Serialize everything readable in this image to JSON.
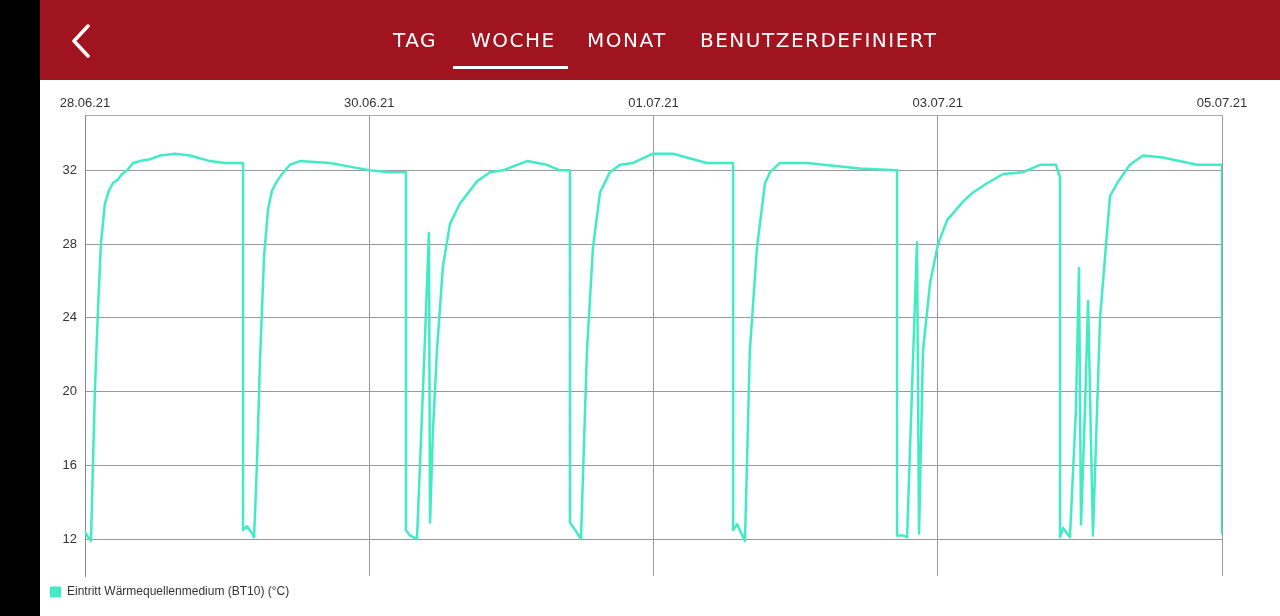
{
  "chart_data": {
    "type": "line",
    "annotations": [
      "TAG",
      "WOCHE",
      "MONAT",
      "BENUTZERDEFINIERT"
    ],
    "xlim": [
      "--06-28T06:00",
      "--07-05T06:00"
    ],
    "xticks": [
      {
        "value": "--06-28T06:00",
        "label": "28.06.21"
      },
      {
        "value": "--06-30T00:00",
        "label": "30.06.21"
      },
      {
        "value": "--07-01T18:00",
        "label": "01.07.21"
      },
      {
        "value": "--07-03T12:00",
        "label": "03.07.21"
      },
      {
        "value": "--07-05T06:00",
        "label": "05.07.21"
      }
    ],
    "ylim": [
      10,
      35
    ],
    "yticks": [
      12,
      16,
      20,
      24,
      28,
      32
    ],
    "grid": true,
    "legend": "bottom left",
    "marker": "none",
    "line_style": "solid",
    "series": [
      {
        "name": "Eintritt Wärmequellenmedium (BT10) (°C)",
        "color": "#42ebc6",
        "x": [
          "--06-28T06:00",
          "--06-28T06:28",
          "--06-28T06:53",
          "--06-28T07:11",
          "--06-28T07:28",
          "--06-28T07:56",
          "--06-28T08:21",
          "--06-28T08:56",
          "--06-28T09:32",
          "--06-28T10:07",
          "--06-28T10:52",
          "--06-28T11:28",
          "--06-28T12:13",
          "--06-28T13:06",
          "--06-28T14:06",
          "--06-28T15:37",
          "--06-28T17:05",
          "--06-28T19:19",
          "--06-28T21:30",
          "--06-29T00:29",
          "--06-29T02:40",
          "--06-29T05:21",
          "--06-29T05:21",
          "--06-29T05:56",
          "--06-29T06:32",
          "--06-29T06:59",
          "--06-29T07:25",
          "--06-29T07:52",
          "--06-29T08:28",
          "--06-29T09:03",
          "--06-29T09:38",
          "--06-29T10:21",
          "--06-29T11:07",
          "--06-29T12:17",
          "--06-29T13:45",
          "--06-29T18:12",
          "--06-29T21:09",
          "--06-30T00:00",
          "--06-30T03:04",
          "--06-30T05:25",
          "--06-30T05:25",
          "--06-30T06:00",
          "--06-30T07:03",
          "--06-30T07:31",
          "--06-30T08:14",
          "--06-30T08:49",
          "--06-30T08:59",
          "--06-30T09:24",
          "--06-30T10:00",
          "--06-30T10:53",
          "--06-30T11:56",
          "--06-30T13:24",
          "--06-30T15:55",
          "--06-30T17:51",
          "--06-30T19:47",
          "--06-30T23:19",
          "--07-01T02:15",
          "--07-01T04:11",
          "--07-01T05:39",
          "--07-01T05:39",
          "--07-01T06:25",
          "--07-01T07:17",
          "--07-01T08:10",
          "--07-01T09:03",
          "--07-01T10:06",
          "--07-01T11:34",
          "--07-01T13:03",
          "--07-01T14:59",
          "--07-01T17:55",
          "--07-01T20:54",
          "--07-02T01:54",
          "--07-02T05:46",
          "--07-02T05:46",
          "--07-02T06:21",
          "--07-02T07:31",
          "--07-02T08:14",
          "--07-02T09:17",
          "--07-02T10:28",
          "--07-02T11:13",
          "--07-02T12:41",
          "--07-02T16:41",
          "--07-03T00:29",
          "--07-03T05:59",
          "--07-03T05:59",
          "--07-03T06:53",
          "--07-03T07:28",
          "--07-03T08:21",
          "--07-03T08:56",
          "--07-03T09:14",
          "--07-03T09:49",
          "--07-03T10:52",
          "--07-03T12:03",
          "--07-03T13:23",
          "--07-03T15:44",
          "--07-03T17:13",
          "--07-03T19:16",
          "--07-03T21:40",
          "--07-04T00:36",
          "--07-04T03:07",
          "--07-04T05:28",
          "--07-04T06:04",
          "--07-04T06:04",
          "--07-04T06:31",
          "--07-04T07:32",
          "--07-04T08:25",
          "--07-04T08:52",
          "--07-04T09:10",
          "--07-04T09:45",
          "--07-04T10:13",
          "--07-04T10:56",
          "--07-04T11:59",
          "--07-04T13:27",
          "--07-04T14:30",
          "--07-04T16:23",
          "--07-04T18:19",
          "--07-04T21:18",
          "--07-05T02:18",
          "--07-05T06:00",
          "--07-05T06:00"
        ],
        "values": [
          12.4,
          12.1,
          11.9,
          16.2,
          20.1,
          24.6,
          28.0,
          30.2,
          30.9,
          31.3,
          31.5,
          31.8,
          32.0,
          32.4,
          32.5,
          32.6,
          32.8,
          32.9,
          32.8,
          32.5,
          32.4,
          32.4,
          12.5,
          12.7,
          12.4,
          12.1,
          16.2,
          21.8,
          27.4,
          29.9,
          30.9,
          31.4,
          31.8,
          32.3,
          32.5,
          32.4,
          32.2,
          32.0,
          31.9,
          31.9,
          12.5,
          12.2,
          12.0,
          16.2,
          22.9,
          28.6,
          12.9,
          17.8,
          22.2,
          26.8,
          29.1,
          30.2,
          31.4,
          31.9,
          32.0,
          32.5,
          32.3,
          32.0,
          32.0,
          12.9,
          12.5,
          12.0,
          22.2,
          27.8,
          30.8,
          31.9,
          32.3,
          32.4,
          32.9,
          32.9,
          32.4,
          32.4,
          12.5,
          12.8,
          11.9,
          22.2,
          27.8,
          31.3,
          31.9,
          32.4,
          32.4,
          32.1,
          32.0,
          12.2,
          12.2,
          12.1,
          21.8,
          28.1,
          12.3,
          22.2,
          25.9,
          28.0,
          29.3,
          30.3,
          30.8,
          31.3,
          31.8,
          31.9,
          32.3,
          32.3,
          31.6,
          12.1,
          12.6,
          12.1,
          19.0,
          26.7,
          12.8,
          19.0,
          24.9,
          12.2,
          24.0,
          30.6,
          31.3,
          32.3,
          32.8,
          32.7,
          32.3,
          32.3,
          12.3
        ]
      }
    ]
  }
}
